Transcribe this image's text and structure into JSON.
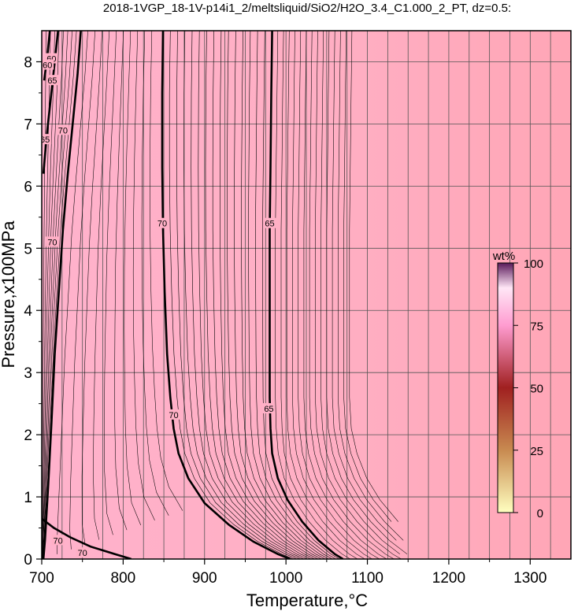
{
  "chart_data": {
    "type": "contour",
    "title": "2018-1VGP_18-1V-p14i1_2/meltsliquid/SiO2/H2O_3.4_C1.000_2_PT, dz=0.5:",
    "xlabel": "Temperature,°C",
    "ylabel": "Pressure,x100MPa",
    "xlim": [
      700,
      1350
    ],
    "ylim": [
      0,
      8.5
    ],
    "x_ticks": [
      "700",
      "800",
      "900",
      "1000",
      "1100",
      "1200",
      "1300"
    ],
    "y_ticks": [
      "0",
      "1",
      "2",
      "3",
      "4",
      "5",
      "6",
      "7",
      "8"
    ],
    "x_tick_values": [
      700,
      800,
      900,
      1000,
      1100,
      1200,
      1300
    ],
    "y_tick_values": [
      0,
      1,
      2,
      3,
      4,
      5,
      6,
      7,
      8
    ],
    "grid": true,
    "colors": {
      "background": "#ffffff",
      "field_low_t": "#ffb0c8",
      "field_high_t": "#ffa6b6",
      "grid": "#444444",
      "contour": "#000000"
    },
    "colorbar": {
      "label": "wt%",
      "min": 0,
      "max": 100,
      "ticks": [
        "0",
        "25",
        "50",
        "75",
        "100"
      ],
      "tick_values": [
        0,
        25,
        50,
        75,
        100
      ],
      "gradient": [
        "#ffffc0",
        "#c88a50",
        "#a02020",
        "#ff9cd0",
        "#ffe6f6",
        "#5a1a5a"
      ]
    },
    "labeled_contours": [
      {
        "label": "70",
        "value": 70,
        "points": [
          [
            849,
            8.5
          ],
          [
            848,
            7.5
          ],
          [
            848,
            6.3
          ],
          [
            849,
            5.3
          ],
          [
            851,
            4.3
          ],
          [
            854,
            3.3
          ],
          [
            858,
            2.6
          ],
          [
            862,
            2.1
          ],
          [
            868,
            1.7
          ],
          [
            880,
            1.3
          ],
          [
            900,
            0.9
          ],
          [
            930,
            0.55
          ],
          [
            960,
            0.28
          ],
          [
            990,
            0.08
          ],
          [
            1005,
            0
          ]
        ],
        "label_positions": [
          [
            848,
            5.4
          ],
          [
            862,
            2.32
          ]
        ]
      },
      {
        "label": "65",
        "value": 65,
        "points": [
          [
            983,
            8.5
          ],
          [
            982,
            7.5
          ],
          [
            981,
            6.3
          ],
          [
            980,
            5.3
          ],
          [
            980,
            4.3
          ],
          [
            980,
            3.3
          ],
          [
            980,
            2.6
          ],
          [
            981,
            2.1
          ],
          [
            983,
            1.7
          ],
          [
            990,
            1.3
          ],
          [
            1002,
            0.95
          ],
          [
            1020,
            0.6
          ],
          [
            1040,
            0.3
          ],
          [
            1060,
            0.08
          ],
          [
            1070,
            0
          ]
        ],
        "label_positions": [
          [
            980,
            5.4
          ],
          [
            979,
            2.42
          ]
        ]
      },
      {
        "label": "70",
        "value": 70,
        "points": [
          [
            748,
            8.5
          ],
          [
            744,
            7.8
          ],
          [
            738,
            7.0
          ],
          [
            732,
            6.2
          ],
          [
            726,
            5.3
          ],
          [
            721,
            4.3
          ],
          [
            716,
            3.3
          ],
          [
            712,
            2.2
          ],
          [
            708,
            1.2
          ],
          [
            704,
            0.3
          ],
          [
            702,
            0
          ]
        ],
        "label_positions": [
          [
            726,
            6.9
          ],
          [
            713,
            5.1
          ]
        ]
      },
      {
        "label": "65",
        "value": 65,
        "points": [
          [
            720,
            8.5
          ],
          [
            716,
            8.0
          ],
          [
            711,
            7.4
          ],
          [
            706,
            6.8
          ],
          [
            702,
            6.2
          ]
        ],
        "label_positions": [
          [
            713,
            7.7
          ],
          [
            704,
            6.75
          ]
        ]
      },
      {
        "label": "60",
        "value": 60,
        "points": [
          [
            710,
            8.5
          ],
          [
            707,
            8.1
          ],
          [
            703,
            7.7
          ]
        ],
        "label_positions": [
          [
            712,
            8.05
          ],
          [
            707,
            7.95
          ]
        ]
      },
      {
        "label": "70",
        "value": 70,
        "points": [
          [
            700,
            0.65
          ],
          [
            715,
            0.5
          ],
          [
            735,
            0.35
          ],
          [
            760,
            0.2
          ],
          [
            790,
            0.08
          ],
          [
            810,
            0
          ]
        ],
        "label_positions": [
          [
            720,
            0.3
          ],
          [
            750,
            0.1
          ]
        ]
      }
    ]
  }
}
